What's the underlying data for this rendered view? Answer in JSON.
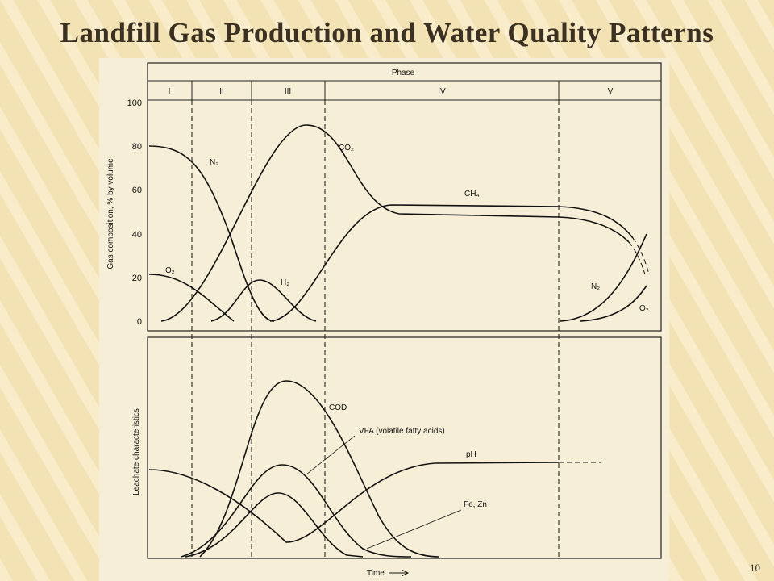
{
  "slide": {
    "title": "Landfill Gas Production and Water Quality Patterns",
    "page_number": "10"
  },
  "figure": {
    "phase_header": "Phase",
    "phases": [
      "I",
      "II",
      "III",
      "IV",
      "V"
    ],
    "gas_axis_label": "Gas composition, % by volume",
    "gas_ticks": [
      "100",
      "80",
      "60",
      "40",
      "20",
      "0"
    ],
    "gas_labels": [
      "N₂",
      "O₂",
      "H₂",
      "CO₂",
      "CH₄",
      "N₂",
      "O₂"
    ],
    "leachate_axis_label": "Leachate characteristics",
    "leachate_labels": [
      "COD",
      "VFA (volatile fatty acids)",
      "pH",
      "Fe, Zn"
    ],
    "time_label": "Time"
  }
}
